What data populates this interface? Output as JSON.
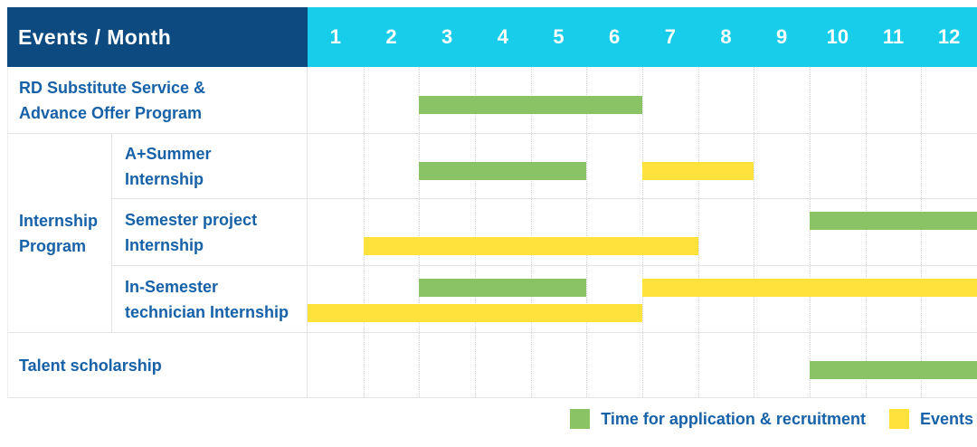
{
  "header": {
    "title": "Events / Month"
  },
  "colors": {
    "header_bg": "#0D4A80",
    "months_bg": "#18CDE9",
    "green": "#89C365",
    "yellow": "#FFE33C",
    "text_blue": "#1761A8",
    "row_line": "#E4E4E4",
    "month_line": "#D7D7D7"
  },
  "chart_data": {
    "type": "gantt",
    "title": "Events / Month",
    "months": [
      "1",
      "2",
      "3",
      "4",
      "5",
      "6",
      "7",
      "8",
      "9",
      "10",
      "11",
      "12"
    ],
    "x_range": [
      1,
      12
    ],
    "grid": "on",
    "bar_types": {
      "recruitment": {
        "legend_label": "Time for application & recruitment",
        "color": "#89C365"
      },
      "event": {
        "legend_label": "Events",
        "color": "#FFE33C"
      }
    },
    "group": {
      "name": "Internship Program",
      "label_lines": [
        "Internship",
        "Program"
      ],
      "covers_rows": [
        "A+Summer Internship",
        "Semester project Internship",
        "In-Semester technician Internship"
      ]
    },
    "rows": [
      {
        "label": "RD Substitute Service & Advance Offer Program",
        "label_lines": [
          "RD Substitute Service &",
          "Advance Offer Program"
        ],
        "group": "",
        "bars": [
          [
            {
              "type": "recruitment",
              "start_month": 3,
              "end_month": 6
            }
          ]
        ]
      },
      {
        "label": "A+Summer Internship",
        "label_lines": [
          "A+Summer",
          "Internship"
        ],
        "group": "Internship Program",
        "bars": [
          [
            {
              "type": "recruitment",
              "start_month": 3,
              "end_month": 5
            },
            {
              "type": "event",
              "start_month": 7,
              "end_month": 8
            }
          ]
        ]
      },
      {
        "label": "Semester project Internship",
        "label_lines": [
          "Semester project",
          "Internship"
        ],
        "group": "Internship Program",
        "bars": [
          [
            {
              "type": "recruitment",
              "start_month": 10,
              "end_month": 12
            }
          ],
          [
            {
              "type": "event",
              "start_month": 2,
              "end_month": 7
            }
          ]
        ]
      },
      {
        "label": "In-Semester technician Internship",
        "label_lines": [
          "In-Semester",
          "technician Internship"
        ],
        "group": "Internship Program",
        "bars": [
          [
            {
              "type": "recruitment",
              "start_month": 3,
              "end_month": 5
            },
            {
              "type": "event",
              "start_month": 7,
              "end_month": 12
            }
          ],
          [
            {
              "type": "event",
              "start_month": 1,
              "end_month": 6
            }
          ]
        ]
      },
      {
        "label": "Talent scholarship",
        "label_lines": [
          "Talent scholarship"
        ],
        "group": "",
        "bars": [
          [
            {
              "type": "recruitment",
              "start_month": 10,
              "end_month": 12
            }
          ]
        ]
      }
    ]
  },
  "legend": {
    "items": [
      {
        "key": "recruitment",
        "swatch": "green",
        "label": "Time for application & recruitment"
      },
      {
        "key": "event",
        "swatch": "yellow",
        "label": "Events"
      }
    ]
  }
}
